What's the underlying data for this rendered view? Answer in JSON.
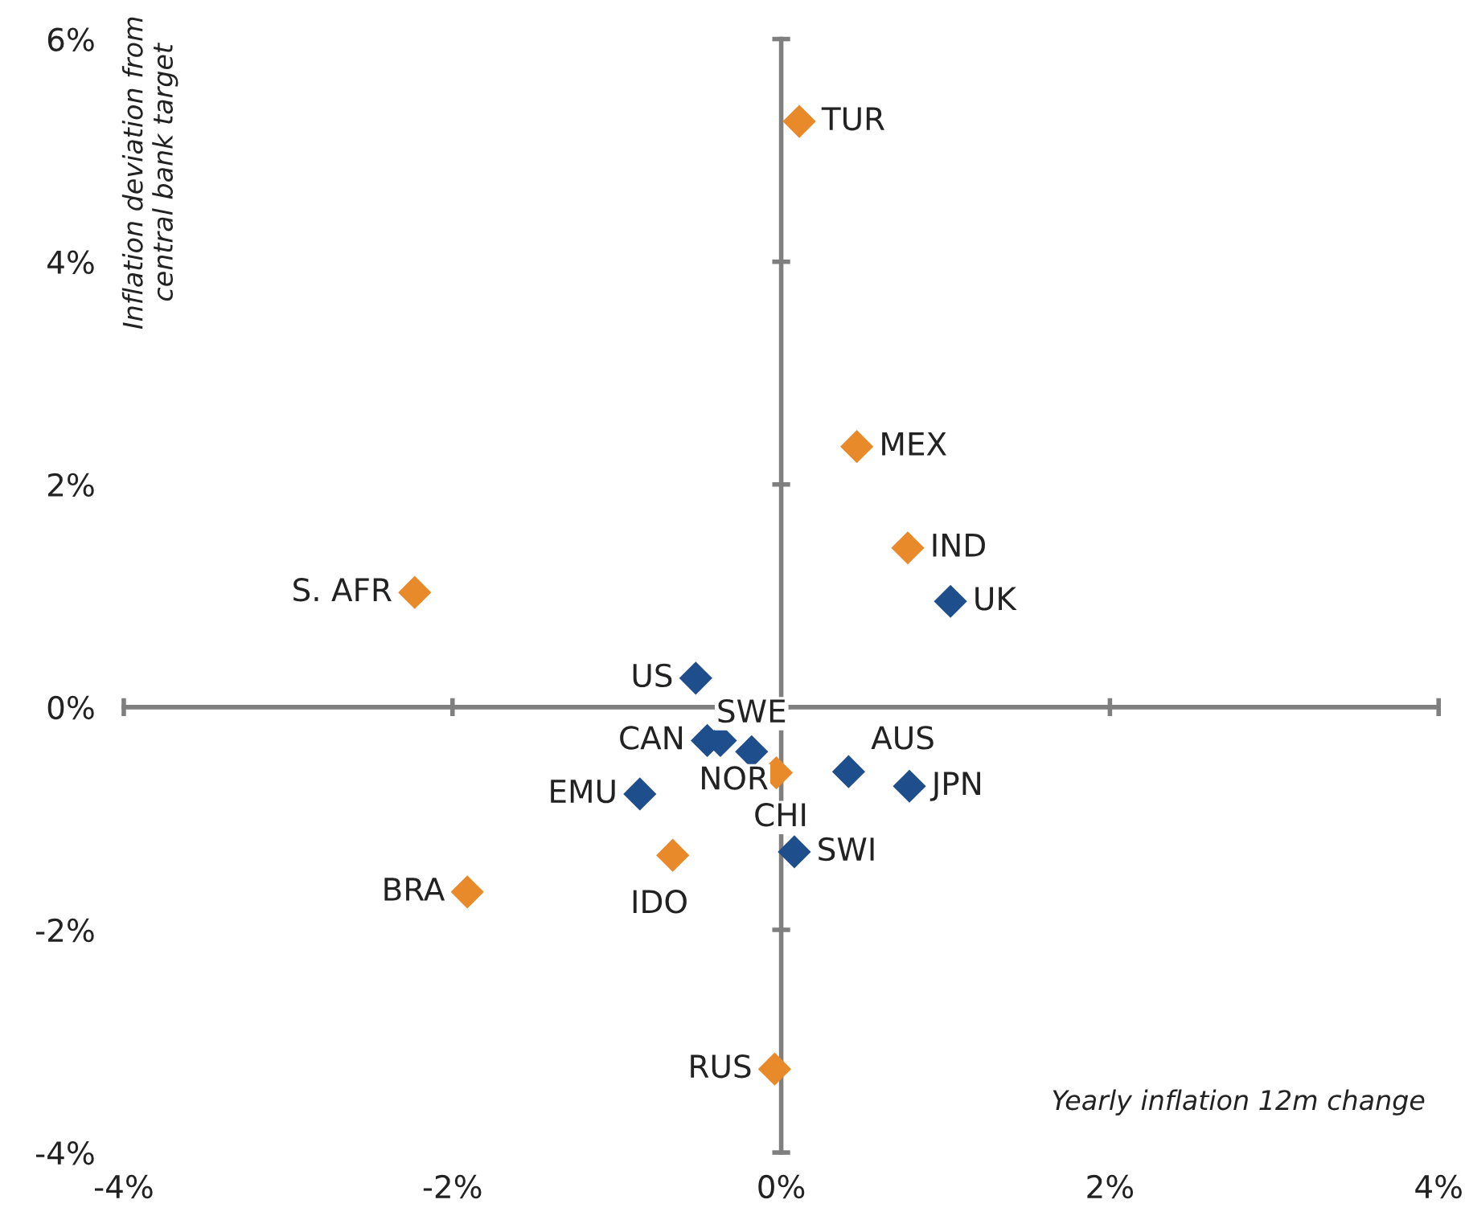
{
  "chart_data": {
    "type": "scatter",
    "xlabel": "Yearly inflation 12m change",
    "ylabel": "Inflation deviation from central bank target",
    "xlim": [
      -4,
      4
    ],
    "ylim": [
      -4,
      6
    ],
    "xticks": [
      {
        "value": -4,
        "label": "-4%"
      },
      {
        "value": -2,
        "label": "-2%"
      },
      {
        "value": 0,
        "label": "0%"
      },
      {
        "value": 2,
        "label": "2%"
      },
      {
        "value": 4,
        "label": "4%"
      }
    ],
    "yticks": [
      {
        "value": -4,
        "label": "-4%"
      },
      {
        "value": -2,
        "label": "-2%"
      },
      {
        "value": 0,
        "label": "0%"
      },
      {
        "value": 2,
        "label": "2%"
      },
      {
        "value": 4,
        "label": "4%"
      },
      {
        "value": 6,
        "label": "6%"
      }
    ],
    "marker": "diamond",
    "series": [
      {
        "color": "#e8892a",
        "x": [
          0.11,
          0.46,
          0.77,
          -2.23,
          -0.03,
          -0.66,
          -1.91,
          -0.04
        ],
        "values": [
          5.26,
          2.34,
          1.43,
          1.03,
          -0.59,
          -1.33,
          -1.66,
          -3.25
        ]
      },
      {
        "color": "#1f4e8c",
        "x": [
          1.03,
          -0.52,
          -0.45,
          -0.37,
          -0.18,
          0.41,
          0.78,
          -0.86,
          0.08
        ],
        "values": [
          0.95,
          0.26,
          -0.3,
          -0.3,
          -0.4,
          -0.58,
          -0.71,
          -0.78,
          -1.3
        ]
      }
    ],
    "annotations": [
      {
        "text": "TUR",
        "x": 0.11,
        "y": 5.26
      },
      {
        "text": "MEX",
        "x": 0.46,
        "y": 2.34
      },
      {
        "text": "IND",
        "x": 0.77,
        "y": 1.43
      },
      {
        "text": "S. AFR",
        "x": -2.23,
        "y": 1.03
      },
      {
        "text": "CHI",
        "x": -0.03,
        "y": -0.59
      },
      {
        "text": "IDO",
        "x": -0.66,
        "y": -1.33
      },
      {
        "text": "BRA",
        "x": -1.91,
        "y": -1.66
      },
      {
        "text": "RUS",
        "x": -0.04,
        "y": -3.25
      },
      {
        "text": "UK",
        "x": 1.03,
        "y": 0.95
      },
      {
        "text": "US",
        "x": -0.52,
        "y": 0.26
      },
      {
        "text": "CAN",
        "x": -0.45,
        "y": -0.3
      },
      {
        "text": "NOR",
        "x": -0.37,
        "y": -0.3
      },
      {
        "text": "SWE",
        "x": -0.18,
        "y": -0.4
      },
      {
        "text": "AUS",
        "x": 0.41,
        "y": -0.58
      },
      {
        "text": "JPN",
        "x": 0.78,
        "y": -0.71
      },
      {
        "text": "EMU",
        "x": -0.86,
        "y": -0.78
      },
      {
        "text": "SWI",
        "x": 0.08,
        "y": -1.3
      }
    ]
  }
}
